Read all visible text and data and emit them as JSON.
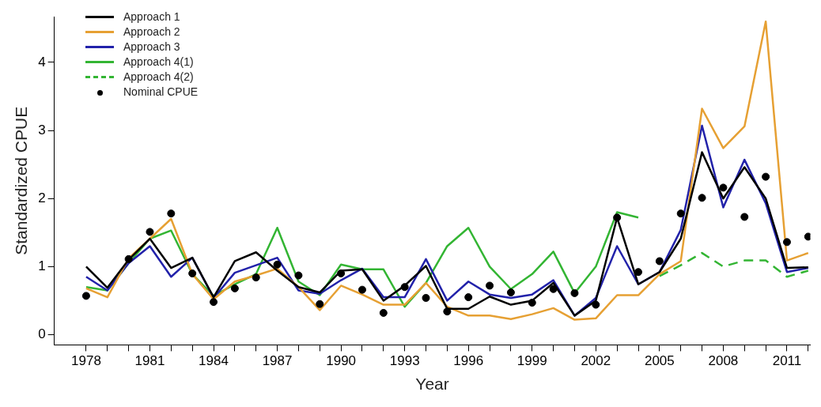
{
  "chart_data": {
    "type": "line",
    "xlabel": "Year",
    "ylabel": "Standardized CPUE",
    "x": [
      1978,
      1979,
      1980,
      1981,
      1982,
      1983,
      1984,
      1985,
      1986,
      1987,
      1988,
      1989,
      1990,
      1991,
      1992,
      1993,
      1994,
      1995,
      1996,
      1997,
      1998,
      1999,
      2000,
      2001,
      2002,
      2003,
      2004,
      2005,
      2006,
      2007,
      2008,
      2009,
      2010,
      2011,
      2012
    ],
    "series": [
      {
        "name": "Approach 1",
        "color": "#000000",
        "values": [
          1.0,
          0.69,
          1.1,
          1.41,
          0.98,
          1.13,
          0.55,
          1.08,
          1.21,
          0.94,
          0.7,
          0.62,
          0.94,
          0.96,
          0.5,
          0.72,
          1.01,
          0.38,
          0.38,
          0.56,
          0.44,
          0.5,
          0.76,
          0.28,
          0.5,
          1.72,
          0.74,
          0.92,
          1.41,
          2.68,
          2.0,
          2.46,
          2.0,
          0.98,
          0.99
        ]
      },
      {
        "name": "Approach 2",
        "color": "#e6a033",
        "values": [
          0.68,
          0.55,
          1.12,
          1.41,
          1.7,
          0.89,
          0.52,
          0.78,
          0.87,
          0.97,
          0.7,
          0.36,
          0.72,
          0.59,
          0.44,
          0.44,
          0.76,
          0.41,
          0.28,
          0.28,
          0.23,
          0.3,
          0.39,
          0.22,
          0.24,
          0.58,
          0.58,
          0.89,
          1.08,
          3.32,
          2.74,
          3.06,
          4.6,
          1.09,
          1.2
        ]
      },
      {
        "name": "Approach 3",
        "color": "#2222aa",
        "values": [
          0.85,
          0.65,
          1.05,
          1.3,
          0.85,
          1.13,
          0.54,
          0.91,
          1.02,
          1.13,
          0.65,
          0.6,
          0.8,
          0.97,
          0.55,
          0.55,
          1.11,
          0.5,
          0.78,
          0.59,
          0.54,
          0.59,
          0.8,
          0.28,
          0.54,
          1.3,
          0.74,
          0.92,
          1.54,
          3.07,
          1.87,
          2.57,
          1.93,
          0.92,
          0.98
        ]
      },
      {
        "name": "Approach 4(1)",
        "color": "#33b533",
        "values": [
          0.7,
          0.65,
          1.05,
          1.41,
          1.53,
          0.89,
          0.57,
          0.74,
          0.89,
          1.57,
          0.78,
          0.58,
          1.03,
          0.96,
          0.96,
          0.41,
          0.76,
          1.3,
          1.57,
          1.0,
          0.67,
          0.89,
          1.22,
          0.61,
          1.0,
          1.8,
          1.72,
          null,
          null,
          null,
          null,
          null,
          null,
          null,
          null
        ]
      },
      {
        "name": "Approach 4(2)",
        "color": "#33b533",
        "line_style": "dashed",
        "values": [
          null,
          null,
          null,
          null,
          null,
          null,
          null,
          null,
          null,
          null,
          null,
          null,
          null,
          null,
          null,
          null,
          null,
          null,
          null,
          null,
          null,
          null,
          null,
          null,
          null,
          null,
          null,
          0.86,
          1.02,
          1.2,
          1.0,
          1.09,
          1.09,
          0.85,
          0.94
        ]
      },
      {
        "name": "Nominal CPUE",
        "type": "scatter",
        "marker": "circle",
        "color": "#000000",
        "values": [
          0.57,
          null,
          1.11,
          1.51,
          1.78,
          0.9,
          0.48,
          0.68,
          0.84,
          1.03,
          0.87,
          0.45,
          0.9,
          0.66,
          0.32,
          0.7,
          0.54,
          0.34,
          0.55,
          0.72,
          0.62,
          0.47,
          0.67,
          0.61,
          0.44,
          1.72,
          0.92,
          1.08,
          1.78,
          2.01,
          2.16,
          1.73,
          2.32,
          1.36,
          1.44
        ]
      }
    ],
    "xlim": [
      1976.5,
      2012.1
    ],
    "ylim": [
      -0.15,
      4.67
    ],
    "xticks": [
      1978,
      {
        "value": 1979,
        "label": null
      },
      {
        "value": 1980,
        "label": null
      },
      1981,
      {
        "value": 1982,
        "label": null
      },
      {
        "value": 1983,
        "label": null
      },
      1984,
      {
        "value": 1985,
        "label": null
      },
      {
        "value": 1986,
        "label": null
      },
      1987,
      {
        "value": 1988,
        "label": null
      },
      {
        "value": 1989,
        "label": null
      },
      1990,
      {
        "value": 1991,
        "label": null
      },
      {
        "value": 1992,
        "label": null
      },
      1993,
      {
        "value": 1994,
        "label": null
      },
      {
        "value": 1995,
        "label": null
      },
      1996,
      {
        "value": 1997,
        "label": null
      },
      {
        "value": 1998,
        "label": null
      },
      1999,
      {
        "value": 2000,
        "label": null
      },
      {
        "value": 2001,
        "label": null
      },
      2002,
      {
        "value": 2003,
        "label": null
      },
      {
        "value": 2004,
        "label": null
      },
      2005,
      {
        "value": 2006,
        "label": null
      },
      {
        "value": 2007,
        "label": null
      },
      2008,
      {
        "value": 2009,
        "label": null
      },
      {
        "value": 2010,
        "label": null
      },
      2011,
      {
        "value": 2012,
        "label": null
      }
    ],
    "yticks": [
      0,
      1,
      2,
      3,
      4
    ],
    "grid": false,
    "legend": "top left",
    "marker": "none",
    "line_style": "solid"
  }
}
